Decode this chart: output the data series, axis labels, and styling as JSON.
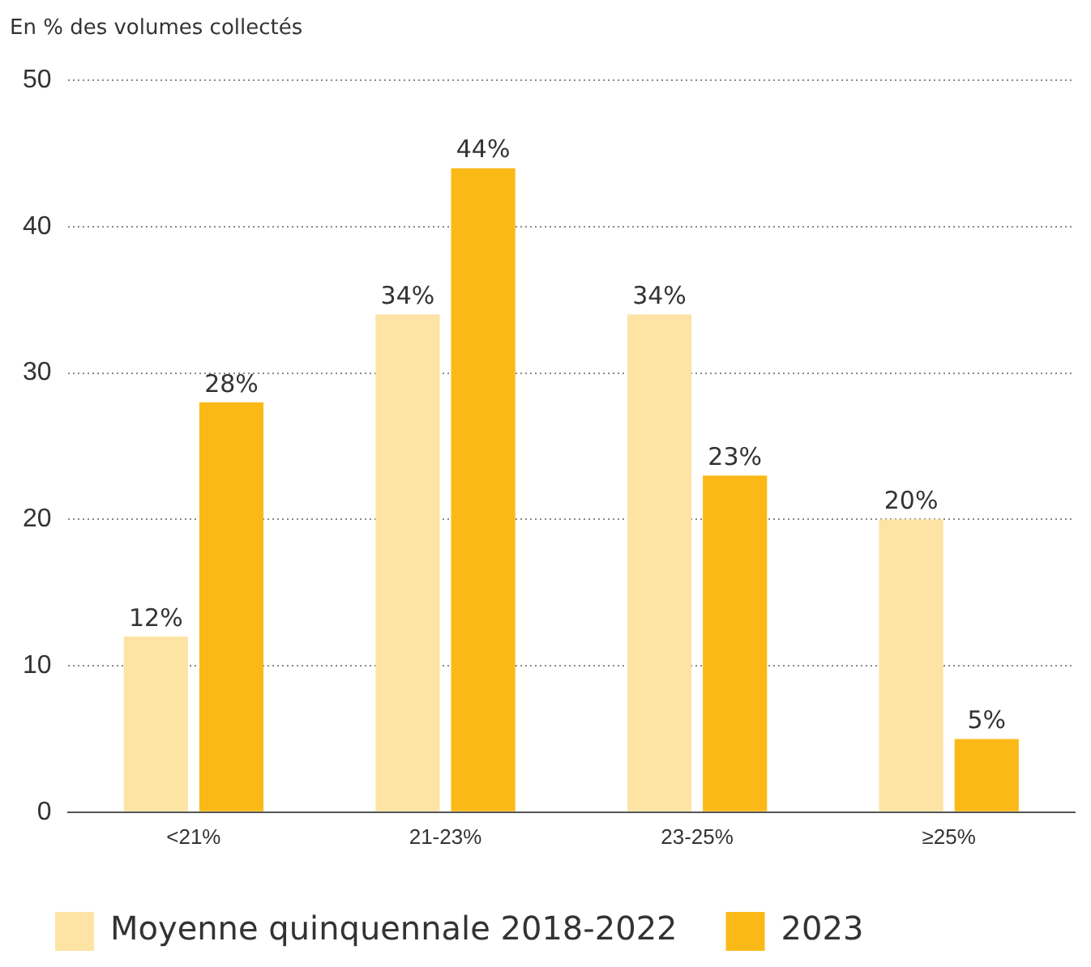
{
  "chart_data": {
    "type": "bar",
    "ylabel": "En % des volumes collectés",
    "categories": [
      "<21%",
      "21-23%",
      "23-25%",
      "≥25%"
    ],
    "series": [
      {
        "name": "Moyenne quinquennale 2018-2022",
        "color": "#fde3a4",
        "values": [
          12,
          34,
          34,
          20
        ],
        "value_labels": [
          "12%",
          "34%",
          "34%",
          "20%"
        ]
      },
      {
        "name": "2023",
        "color": "#fbb918",
        "values": [
          28,
          44,
          23,
          5
        ],
        "value_labels": [
          "28%",
          "44%",
          "23%",
          "5%"
        ]
      }
    ],
    "ylim": [
      0,
      50
    ],
    "yticks": [
      0,
      10,
      20,
      30,
      40,
      50
    ],
    "grid": "y",
    "legend": "bottom left"
  }
}
